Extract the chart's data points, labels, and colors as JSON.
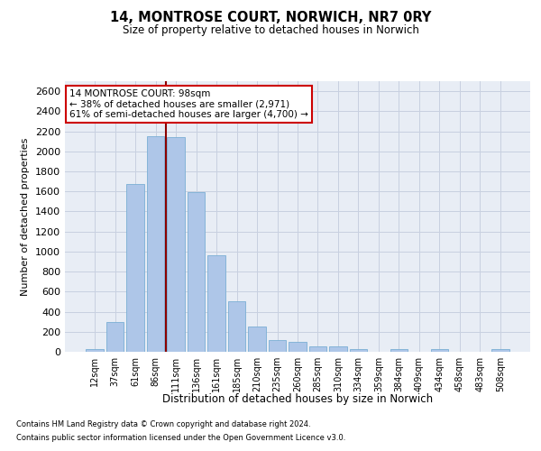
{
  "title_line1": "14, MONTROSE COURT, NORWICH, NR7 0RY",
  "title_line2": "Size of property relative to detached houses in Norwich",
  "xlabel": "Distribution of detached houses by size in Norwich",
  "ylabel": "Number of detached properties",
  "categories": [
    "12sqm",
    "37sqm",
    "61sqm",
    "86sqm",
    "111sqm",
    "136sqm",
    "161sqm",
    "185sqm",
    "210sqm",
    "235sqm",
    "260sqm",
    "285sqm",
    "310sqm",
    "334sqm",
    "359sqm",
    "384sqm",
    "409sqm",
    "434sqm",
    "458sqm",
    "483sqm",
    "508sqm"
  ],
  "values": [
    25,
    300,
    1670,
    2150,
    2140,
    1590,
    960,
    505,
    250,
    120,
    100,
    50,
    50,
    30,
    0,
    30,
    0,
    25,
    0,
    0,
    25
  ],
  "bar_color": "#aec6e8",
  "bar_edge_color": "#7aafd4",
  "vline_x": 3.5,
  "vline_color": "#8b0000",
  "annotation_text": "14 MONTROSE COURT: 98sqm\n← 38% of detached houses are smaller (2,971)\n61% of semi-detached houses are larger (4,700) →",
  "annotation_box_color": "#ffffff",
  "annotation_box_edge_color": "#cc0000",
  "ylim": [
    0,
    2700
  ],
  "yticks": [
    0,
    200,
    400,
    600,
    800,
    1000,
    1200,
    1400,
    1600,
    1800,
    2000,
    2200,
    2400,
    2600
  ],
  "grid_color": "#c8d0e0",
  "bg_color": "#e8edf5",
  "footnote1": "Contains HM Land Registry data © Crown copyright and database right 2024.",
  "footnote2": "Contains public sector information licensed under the Open Government Licence v3.0."
}
